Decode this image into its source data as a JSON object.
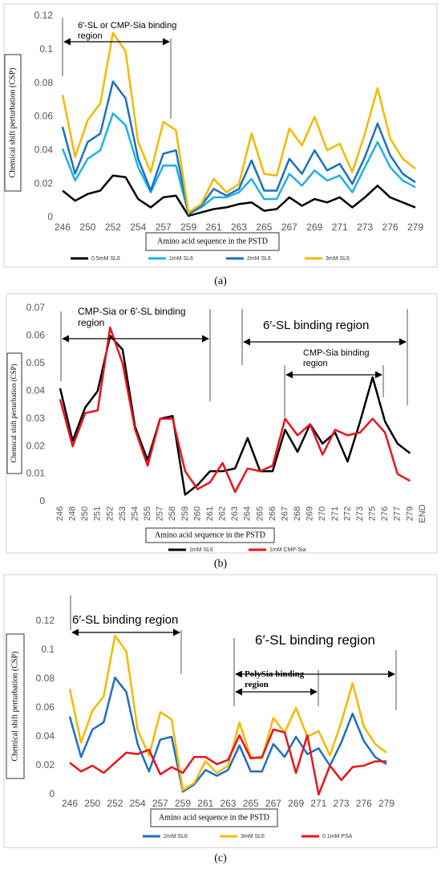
{
  "chart_data": [
    {
      "type": "line",
      "caption": "(a)",
      "y_label": "Chemical shift perturbation (CSP)",
      "x_label": "Amino acid sequence in the PSTD",
      "annotations": [
        "6′-SL or CMP-Sia binding region"
      ],
      "categories": [
        "246",
        null,
        "250",
        null,
        "252",
        null,
        "254",
        null,
        "257",
        null,
        "259",
        null,
        "261",
        null,
        "263",
        null,
        "265",
        null,
        "267",
        null,
        "269",
        null,
        "271",
        null,
        "273",
        null,
        "276",
        null,
        "279"
      ],
      "ylim": [
        0,
        0.12
      ],
      "yticks": [
        0,
        0.02,
        0.04,
        0.06,
        0.08,
        0.1,
        0.12
      ],
      "grid": false,
      "legend": "bottom",
      "series": [
        {
          "name": "0.5mM SL6",
          "color": "#000000",
          "values": [
            0.016,
            0.01,
            0.014,
            0.016,
            0.025,
            0.024,
            0.011,
            0.006,
            0.012,
            0.013,
            0.001,
            0.003,
            0.005,
            0.006,
            0.008,
            0.009,
            0.004,
            0.005,
            0.012,
            0.007,
            0.011,
            0.009,
            0.012,
            0.006,
            0.012,
            0.019,
            0.012,
            0.009,
            0.006
          ]
        },
        {
          "name": "1mM SL6",
          "color": "#1fb0e8",
          "values": [
            0.041,
            0.022,
            0.035,
            0.04,
            0.062,
            0.055,
            0.03,
            0.015,
            0.031,
            0.031,
            0.002,
            0.006,
            0.012,
            0.012,
            0.015,
            0.023,
            0.011,
            0.011,
            0.026,
            0.019,
            0.028,
            0.022,
            0.025,
            0.015,
            0.03,
            0.045,
            0.03,
            0.022,
            0.018
          ]
        },
        {
          "name": "2mM SL6",
          "color": "#1f6fbf",
          "values": [
            0.054,
            0.026,
            0.045,
            0.05,
            0.081,
            0.071,
            0.035,
            0.016,
            0.038,
            0.04,
            0.002,
            0.007,
            0.017,
            0.013,
            0.017,
            0.034,
            0.016,
            0.016,
            0.035,
            0.026,
            0.04,
            0.028,
            0.032,
            0.02,
            0.036,
            0.056,
            0.037,
            0.026,
            0.021
          ]
        },
        {
          "name": "3mM SL6",
          "color": "#f5b800",
          "values": [
            0.073,
            0.036,
            0.058,
            0.068,
            0.11,
            0.099,
            0.045,
            0.027,
            0.057,
            0.052,
            0.003,
            0.008,
            0.023,
            0.015,
            0.02,
            0.05,
            0.026,
            0.025,
            0.053,
            0.043,
            0.06,
            0.04,
            0.044,
            0.027,
            0.05,
            0.077,
            0.047,
            0.035,
            0.029
          ]
        }
      ]
    },
    {
      "type": "line",
      "caption": "(b)",
      "y_label": "Chemical shift perturbation (CSP)",
      "x_label": "Amino acid sequence in the PSTD",
      "annotations": [
        "CMP-Sia or 6′-SL binding region",
        "6′-SL binding region",
        "CMP-Sia binding region"
      ],
      "categories": [
        "246",
        "248",
        "250",
        "251",
        "252",
        "253",
        "254",
        "255",
        "257",
        "258",
        "259",
        "260",
        "261",
        "262",
        "263",
        "264",
        "265",
        "266",
        "267",
        "268",
        "269",
        "270",
        "271",
        "272",
        "273",
        "275",
        "276",
        "277",
        "279",
        "END"
      ],
      "ylim": [
        0,
        0.07
      ],
      "yticks": [
        0,
        0.01,
        0.02,
        0.03,
        0.04,
        0.05,
        0.06,
        0.07
      ],
      "grid": false,
      "legend": "bottom",
      "series": [
        {
          "name": "1mM SL6",
          "color": "#000000",
          "values": [
            0.041,
            0.022,
            0.034,
            0.04,
            0.06,
            0.055,
            0.027,
            0.015,
            0.03,
            0.031,
            0.0025,
            0.006,
            0.011,
            0.011,
            0.012,
            0.023,
            0.011,
            0.011,
            0.026,
            0.018,
            0.028,
            0.021,
            0.025,
            0.0145,
            0.029,
            0.045,
            0.029,
            0.021,
            0.0175,
            null
          ]
        },
        {
          "name": "1mM CMP-Sia",
          "color": "#e8141b",
          "values": [
            0.037,
            0.02,
            0.032,
            0.033,
            0.063,
            0.05,
            0.026,
            0.013,
            0.03,
            0.03,
            0.011,
            0.0045,
            0.007,
            0.014,
            0.0035,
            0.012,
            0.011,
            0.013,
            0.03,
            0.024,
            0.028,
            0.017,
            0.026,
            0.024,
            0.025,
            0.03,
            0.025,
            0.01,
            0.0075,
            null
          ]
        }
      ]
    },
    {
      "type": "line",
      "caption": "(c)",
      "y_label": "Chemical shift perturbation (CSP)",
      "x_label": "Amino acid sequence in the PSTD",
      "annotations": [
        "6′-SL binding region",
        "6′-SL binding region",
        "PolySia binding region"
      ],
      "categories": [
        "246",
        null,
        "250",
        null,
        "252",
        null,
        "254",
        null,
        "257",
        null,
        "259",
        null,
        "261",
        null,
        "263",
        null,
        "265",
        null,
        "267",
        null,
        "269",
        null,
        "271",
        null,
        "273",
        null,
        "276",
        null,
        "279"
      ],
      "ylim": [
        0,
        0.12
      ],
      "yticks": [
        0,
        0.02,
        0.04,
        0.06,
        0.08,
        0.1,
        0.12
      ],
      "grid": false,
      "legend": "bottom",
      "series": [
        {
          "name": "2mM SL6",
          "color": "#1f6fbf",
          "values": [
            0.054,
            0.026,
            0.045,
            0.05,
            0.081,
            0.071,
            0.035,
            0.016,
            0.038,
            0.04,
            0.002,
            0.007,
            0.017,
            0.013,
            0.017,
            0.034,
            0.016,
            0.016,
            0.035,
            0.026,
            0.04,
            0.028,
            0.032,
            0.02,
            0.036,
            0.056,
            0.037,
            0.026,
            0.021
          ]
        },
        {
          "name": "3mM SL6",
          "color": "#f5b800",
          "values": [
            0.073,
            0.036,
            0.058,
            0.068,
            0.11,
            0.099,
            0.045,
            0.027,
            0.057,
            0.052,
            0.003,
            0.008,
            0.023,
            0.015,
            0.02,
            0.05,
            0.026,
            0.025,
            0.053,
            0.043,
            0.06,
            0.04,
            0.044,
            0.027,
            0.05,
            0.077,
            0.047,
            0.035,
            0.029
          ]
        },
        {
          "name": "0.1mM PSA",
          "color": "#e8141b",
          "values": [
            0.022,
            0.016,
            0.02,
            0.015,
            0.022,
            0.029,
            0.028,
            0.031,
            0.014,
            0.019,
            0.015,
            0.026,
            0.026,
            0.021,
            0.024,
            0.041,
            0.025,
            0.026,
            0.045,
            0.043,
            0.015,
            0.041,
            0.0,
            0.02,
            0.01,
            0.019,
            0.02,
            0.023,
            0.023
          ]
        }
      ]
    }
  ]
}
